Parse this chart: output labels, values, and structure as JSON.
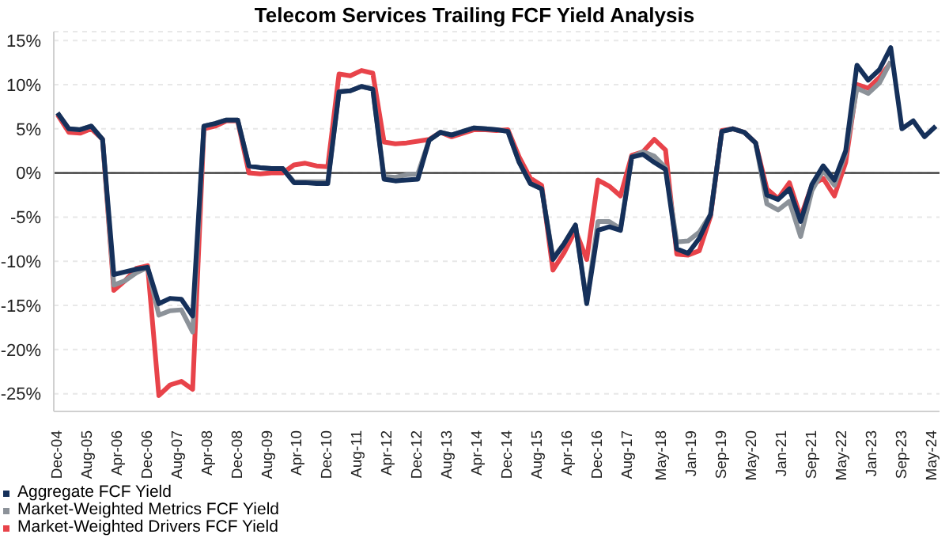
{
  "chart_data": {
    "type": "line",
    "title": "Telecom Services Trailing FCF Yield Analysis",
    "x": [
      "2004-12",
      "2005-03",
      "2005-06",
      "2005-09",
      "2005-12",
      "2006-03",
      "2006-06",
      "2006-09",
      "2006-12",
      "2007-03",
      "2007-06",
      "2007-09",
      "2007-12",
      "2008-03",
      "2008-06",
      "2008-09",
      "2008-12",
      "2009-03",
      "2009-06",
      "2009-09",
      "2009-12",
      "2010-03",
      "2010-06",
      "2010-09",
      "2010-12",
      "2011-03",
      "2011-06",
      "2011-09",
      "2011-12",
      "2012-03",
      "2012-06",
      "2012-09",
      "2012-12",
      "2013-03",
      "2013-06",
      "2013-09",
      "2013-12",
      "2014-03",
      "2014-06",
      "2014-09",
      "2014-12",
      "2015-03",
      "2015-06",
      "2015-09",
      "2015-12",
      "2016-03",
      "2016-06",
      "2016-09",
      "2016-12",
      "2017-03",
      "2017-06",
      "2017-09",
      "2017-12",
      "2018-03",
      "2018-06",
      "2018-09",
      "2018-12",
      "2019-03",
      "2019-06",
      "2019-09",
      "2019-12",
      "2020-03",
      "2020-06",
      "2020-09",
      "2020-12",
      "2021-03",
      "2021-06",
      "2021-09",
      "2021-12",
      "2022-03",
      "2022-06",
      "2022-09",
      "2022-12",
      "2023-03",
      "2023-06",
      "2023-09",
      "2023-12",
      "2024-03",
      "2024-06"
    ],
    "series": [
      {
        "name": "Aggregate FCF Yield",
        "color": "#15305a",
        "values": [
          6.8,
          5.0,
          4.9,
          5.3,
          3.8,
          -11.5,
          -11.2,
          -10.9,
          -10.7,
          -14.8,
          -14.2,
          -14.3,
          -16.2,
          5.3,
          5.6,
          6.0,
          6.0,
          0.8,
          0.6,
          0.5,
          0.5,
          -1.1,
          -1.1,
          -1.2,
          -1.2,
          9.2,
          9.3,
          9.8,
          9.5,
          -0.7,
          -0.9,
          -0.8,
          -0.7,
          3.7,
          4.6,
          4.3,
          4.7,
          5.1,
          5.0,
          4.9,
          4.7,
          1.2,
          -1.2,
          -1.8,
          -9.8,
          -8.0,
          -5.9,
          -14.8,
          -6.5,
          -6.1,
          -6.5,
          1.8,
          2.1,
          1.2,
          0.4,
          -8.6,
          -9.1,
          -7.4,
          -4.7,
          4.7,
          5.0,
          4.6,
          3.4,
          -2.5,
          -3.0,
          -1.8,
          -5.5,
          -1.3,
          0.8,
          -0.8,
          2.5,
          12.2,
          10.5,
          11.7,
          14.2,
          5.0,
          5.9,
          4.1,
          5.3
        ]
      },
      {
        "name": "Market-Weighted Metrics FCF Yield",
        "color": "#8c9299",
        "values": [
          6.8,
          5.0,
          4.9,
          5.3,
          3.8,
          -12.7,
          -12.2,
          -11.3,
          -10.7,
          -16.1,
          -15.6,
          -15.5,
          -18.0,
          5.3,
          5.6,
          6.0,
          6.0,
          0.8,
          0.6,
          0.5,
          0.5,
          -1.0,
          -1.0,
          -1.0,
          -1.0,
          9.2,
          9.3,
          9.8,
          9.5,
          -0.4,
          -0.5,
          -0.2,
          -0.1,
          3.7,
          4.6,
          4.3,
          4.7,
          5.1,
          5.0,
          4.9,
          4.7,
          1.2,
          -1.2,
          -1.8,
          -9.6,
          -8.0,
          -5.9,
          -14.6,
          -5.5,
          -5.5,
          -6.3,
          1.8,
          2.4,
          1.9,
          0.6,
          -7.8,
          -7.7,
          -6.7,
          -4.7,
          4.7,
          5.0,
          4.6,
          3.4,
          -3.5,
          -4.2,
          -3.2,
          -7.2,
          -2.0,
          0.3,
          -1.4,
          2.2,
          9.6,
          9.0,
          10.2,
          12.6,
          null,
          null,
          null,
          null
        ]
      },
      {
        "name": "Market-Weighted Drivers FCF Yield",
        "color": "#e8434a",
        "values": [
          6.6,
          4.6,
          4.5,
          5.0,
          3.8,
          -13.3,
          -12.2,
          -10.8,
          -10.5,
          -25.2,
          -24.0,
          -23.6,
          -24.5,
          5.0,
          5.3,
          5.9,
          5.9,
          0.0,
          -0.1,
          0.0,
          0.0,
          0.9,
          1.1,
          0.8,
          0.7,
          11.2,
          11.0,
          11.6,
          11.3,
          3.5,
          3.3,
          3.4,
          3.6,
          3.8,
          4.6,
          4.1,
          4.5,
          4.9,
          4.9,
          4.8,
          4.9,
          1.8,
          -0.6,
          -1.4,
          -11.0,
          -9.0,
          -6.5,
          -9.8,
          -0.8,
          -1.5,
          -2.6,
          2.0,
          2.4,
          3.8,
          2.6,
          -9.2,
          -9.3,
          -8.8,
          -4.9,
          4.8,
          5.0,
          4.6,
          3.4,
          -1.8,
          -2.9,
          -1.1,
          -5.0,
          -1.4,
          -0.6,
          -2.6,
          1.2,
          10.0,
          9.6,
          10.8,
          12.5,
          null,
          null,
          null,
          null
        ]
      }
    ],
    "xlim": [
      "2004-11",
      "2024-07"
    ],
    "xticks": [
      {
        "value": "2004-12",
        "label": "Dec-04"
      },
      {
        "value": "2005-08",
        "label": "Aug-05"
      },
      {
        "value": "2006-04",
        "label": "Apr-06"
      },
      {
        "value": "2006-12",
        "label": "Dec-06"
      },
      {
        "value": "2007-08",
        "label": "Aug-07"
      },
      {
        "value": "2008-04",
        "label": "Apr-08"
      },
      {
        "value": "2008-12",
        "label": "Dec-08"
      },
      {
        "value": "2009-08",
        "label": "Aug-09"
      },
      {
        "value": "2010-04",
        "label": "Apr-10"
      },
      {
        "value": "2010-12",
        "label": "Dec-10"
      },
      {
        "value": "2011-08",
        "label": "Aug-11"
      },
      {
        "value": "2012-04",
        "label": "Apr-12"
      },
      {
        "value": "2012-12",
        "label": "Dec-12"
      },
      {
        "value": "2013-08",
        "label": "Aug-13"
      },
      {
        "value": "2014-04",
        "label": "Apr-14"
      },
      {
        "value": "2014-12",
        "label": "Dec-14"
      },
      {
        "value": "2015-08",
        "label": "Aug-15"
      },
      {
        "value": "2016-04",
        "label": "Apr-16"
      },
      {
        "value": "2016-12",
        "label": "Dec-16"
      },
      {
        "value": "2017-08",
        "label": "Aug-17"
      },
      {
        "value": "2018-05",
        "label": "May-18"
      },
      {
        "value": "2019-01",
        "label": "Jan-19"
      },
      {
        "value": "2019-09",
        "label": "Sep-19"
      },
      {
        "value": "2020-05",
        "label": "May-20"
      },
      {
        "value": "2021-01",
        "label": "Jan-21"
      },
      {
        "value": "2021-09",
        "label": "Sep-21"
      },
      {
        "value": "2022-05",
        "label": "May-22"
      },
      {
        "value": "2023-01",
        "label": "Jan-23"
      },
      {
        "value": "2023-09",
        "label": "Sep-23"
      },
      {
        "value": "2024-05",
        "label": "May-24"
      }
    ],
    "ylim": [
      -27,
      16
    ],
    "yticks": [
      {
        "value": -25,
        "label": "-25%"
      },
      {
        "value": -20,
        "label": "-20%"
      },
      {
        "value": -15,
        "label": "-15%"
      },
      {
        "value": -10,
        "label": "-10%"
      },
      {
        "value": -5,
        "label": "-5%"
      },
      {
        "value": 0,
        "label": "0%"
      },
      {
        "value": 5,
        "label": "5%"
      },
      {
        "value": 10,
        "label": "10%"
      },
      {
        "value": 15,
        "label": "15%"
      }
    ],
    "ref_lines": [
      {
        "axis": "y",
        "value": 0,
        "color": "#333333"
      }
    ],
    "grid": "y",
    "legend": "bottom left",
    "marker": "none",
    "line_style": "solid"
  }
}
